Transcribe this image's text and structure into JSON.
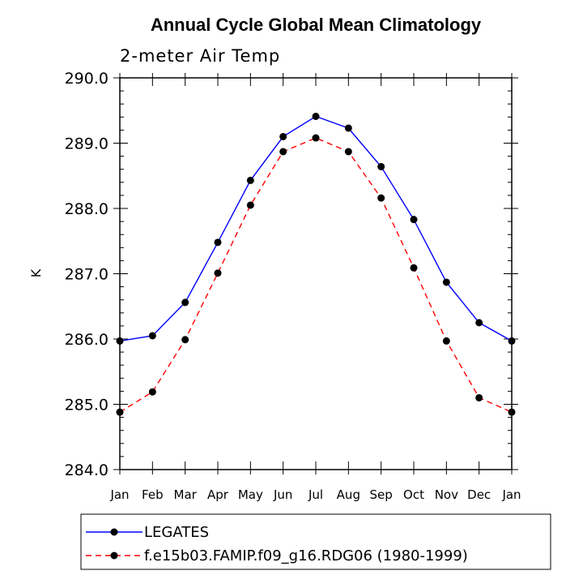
{
  "chart_data": {
    "type": "line",
    "title": "Annual Cycle Global Mean Climatology",
    "subtitle": "2-meter Air Temp",
    "xlabel": "",
    "ylabel": "K",
    "categories": [
      "Jan",
      "Feb",
      "Mar",
      "Apr",
      "May",
      "Jun",
      "Jul",
      "Aug",
      "Sep",
      "Oct",
      "Nov",
      "Dec",
      "Jan"
    ],
    "ylim": [
      284.0,
      290.0
    ],
    "yticks": [
      "284.0",
      "285.0",
      "286.0",
      "287.0",
      "288.0",
      "289.0",
      "290.0"
    ],
    "series": [
      {
        "name": "LEGATES",
        "color": "#0000ff",
        "dash": "solid",
        "values": [
          285.97,
          286.05,
          286.56,
          287.48,
          288.43,
          289.1,
          289.41,
          289.23,
          288.64,
          287.83,
          286.87,
          286.25,
          285.97
        ]
      },
      {
        "name": "f.e15b03.FAMIP.f09_g16.RDG06 (1980-1999)",
        "color": "#ff0000",
        "dash": "dashed",
        "values": [
          284.88,
          285.19,
          285.99,
          287.01,
          288.05,
          288.87,
          289.08,
          288.87,
          288.16,
          287.09,
          285.97,
          285.1,
          284.88
        ]
      }
    ],
    "marker": "filled-circle",
    "marker_color": "#000000",
    "legend_placement": "bottom-left, below plot"
  }
}
